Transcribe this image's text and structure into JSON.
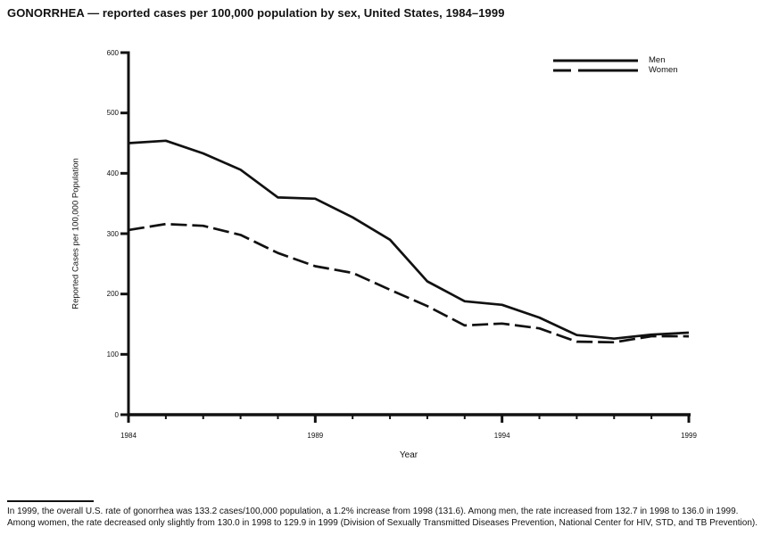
{
  "title": "GONORRHEA — reported cases per 100,000 population by sex, United States, 1984–1999",
  "chart_data": {
    "type": "line",
    "title": "GONORRHEA — reported cases per 100,000 population by sex, United States, 1984–1999",
    "x": [
      1984,
      1985,
      1986,
      1987,
      1988,
      1989,
      1990,
      1991,
      1992,
      1993,
      1994,
      1995,
      1996,
      1997,
      1998,
      1999
    ],
    "series": [
      {
        "name": "Men",
        "line_style": "solid",
        "values": [
          450,
          454,
          433,
          406,
          360,
          358,
          327,
          290,
          221,
          188,
          182,
          161,
          132,
          126,
          132.7,
          136.0
        ]
      },
      {
        "name": "Women",
        "line_style": "dashed",
        "values": [
          306,
          316,
          313,
          298,
          268,
          246,
          235,
          207,
          180,
          148,
          151,
          143,
          121,
          120,
          130.0,
          129.9
        ]
      }
    ],
    "xlabel": "Year",
    "ylabel": "Reported Cases per 100,000 Population",
    "ylim": [
      0,
      600
    ],
    "yticks": [
      0,
      100,
      200,
      300,
      400,
      500,
      600
    ],
    "xticks_labeled": [
      1984,
      1989,
      1994,
      1999
    ],
    "grid": false,
    "legend_position": "top-right",
    "line_color": "#111111",
    "background_color": "#ffffff"
  },
  "footnote": {
    "text": "In 1999, the overall U.S. rate of gonorrhea was 133.2 cases/100,000 population, a 1.2% increase from 1998 (131.6). Among men, the rate increased from 132.7 in 1998 to 136.0 in 1999. Among women, the rate decreased only slightly from 130.0 in 1998 to 129.9 in 1999 (Division of Sexually Transmitted Diseases Prevention, National Center for HIV, STD, and TB Prevention)."
  }
}
